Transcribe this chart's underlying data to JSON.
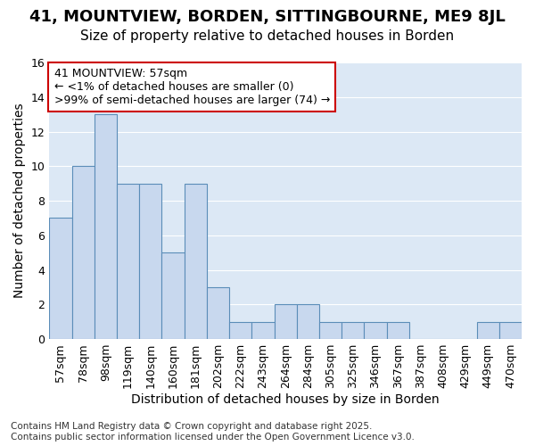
{
  "title": "41, MOUNTVIEW, BORDEN, SITTINGBOURNE, ME9 8JL",
  "subtitle": "Size of property relative to detached houses in Borden",
  "xlabel": "Distribution of detached houses by size in Borden",
  "ylabel": "Number of detached properties",
  "bar_labels": [
    "57sqm",
    "78sqm",
    "98sqm",
    "119sqm",
    "140sqm",
    "160sqm",
    "181sqm",
    "202sqm",
    "222sqm",
    "243sqm",
    "264sqm",
    "284sqm",
    "305sqm",
    "325sqm",
    "346sqm",
    "367sqm",
    "387sqm",
    "408sqm",
    "429sqm",
    "449sqm",
    "470sqm"
  ],
  "bar_values": [
    7,
    10,
    13,
    9,
    9,
    5,
    9,
    3,
    1,
    1,
    2,
    2,
    1,
    1,
    1,
    1,
    0,
    0,
    0,
    1,
    1
  ],
  "bar_color": "#c8d8ee",
  "bar_edge_color": "#5b8db8",
  "ylim": [
    0,
    16
  ],
  "yticks": [
    0,
    2,
    4,
    6,
    8,
    10,
    12,
    14,
    16
  ],
  "annotation_box_text": "41 MOUNTVIEW: 57sqm\n← <1% of detached houses are smaller (0)\n>99% of semi-detached houses are larger (74) →",
  "annotation_box_color": "#ffffff",
  "annotation_box_edge_color": "#cc0000",
  "footnote": "Contains HM Land Registry data © Crown copyright and database right 2025.\nContains public sector information licensed under the Open Government Licence v3.0.",
  "fig_bg_color": "#ffffff",
  "plot_bg_color": "#dce8f5",
  "grid_color": "#ffffff",
  "title_fontsize": 13,
  "subtitle_fontsize": 11,
  "axis_label_fontsize": 10,
  "tick_fontsize": 9,
  "annotation_fontsize": 9,
  "footnote_fontsize": 7.5
}
